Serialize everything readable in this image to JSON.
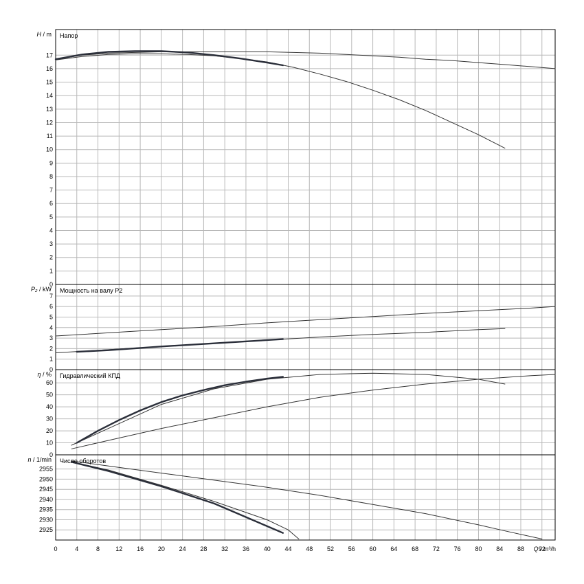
{
  "chart_data": [
    {
      "type": "line",
      "id": "head",
      "title": "Напор",
      "ylabel_symbol": "H",
      "ylabel_unit": "m",
      "ylim": [
        0,
        18.9
      ],
      "yticks": [
        0,
        1,
        2,
        3,
        4,
        5,
        6,
        7,
        8,
        9,
        10,
        11,
        12,
        13,
        14,
        15,
        16,
        17
      ],
      "grid": true,
      "series": [
        {
          "style": "thin",
          "x": [
            0,
            5,
            10,
            15,
            20,
            25,
            30,
            35,
            40,
            45,
            50,
            55,
            60,
            65,
            70,
            75,
            80,
            85,
            90,
            94.5
          ],
          "y": [
            16.7,
            17.0,
            17.15,
            17.2,
            17.25,
            17.25,
            17.25,
            17.25,
            17.25,
            17.2,
            17.15,
            17.05,
            16.95,
            16.85,
            16.7,
            16.6,
            16.45,
            16.3,
            16.15,
            16.0
          ]
        },
        {
          "style": "thin",
          "x": [
            0,
            5,
            10,
            15,
            20,
            25,
            30,
            35,
            40,
            45,
            50,
            55,
            60,
            65,
            70,
            75,
            80,
            85
          ],
          "y": [
            16.65,
            16.9,
            17.05,
            17.1,
            17.1,
            17.05,
            16.95,
            16.75,
            16.5,
            16.1,
            15.6,
            15.05,
            14.4,
            13.7,
            12.9,
            12.0,
            11.1,
            10.1
          ]
        },
        {
          "style": "bold",
          "x": [
            0,
            5,
            10,
            15,
            20,
            25,
            30,
            35,
            40,
            43
          ],
          "y": [
            16.7,
            17.05,
            17.25,
            17.3,
            17.3,
            17.2,
            17.0,
            16.75,
            16.45,
            16.25
          ]
        }
      ]
    },
    {
      "type": "line",
      "id": "power",
      "title": "Мощность на валу P2",
      "ylabel_symbol": "P₂",
      "ylabel_unit": "kW",
      "ylim": [
        0,
        8.1
      ],
      "yticks": [
        0,
        1,
        2,
        3,
        4,
        5,
        6,
        7
      ],
      "grid": true,
      "series": [
        {
          "style": "thin",
          "x": [
            0,
            10,
            20,
            30,
            40,
            50,
            60,
            70,
            80,
            90,
            94.5
          ],
          "y": [
            3.2,
            3.5,
            3.8,
            4.1,
            4.45,
            4.75,
            5.05,
            5.35,
            5.6,
            5.85,
            6.0
          ]
        },
        {
          "style": "thin",
          "x": [
            0,
            10,
            20,
            30,
            40,
            50,
            60,
            70,
            80,
            85
          ],
          "y": [
            1.6,
            1.9,
            2.2,
            2.5,
            2.8,
            3.1,
            3.35,
            3.55,
            3.8,
            3.9
          ]
        },
        {
          "style": "bold",
          "x": [
            4,
            10,
            20,
            30,
            43
          ],
          "y": [
            1.7,
            1.85,
            2.2,
            2.5,
            2.9
          ]
        }
      ]
    },
    {
      "type": "line",
      "id": "efficiency",
      "title": "Гидравлический КПД",
      "ylabel_symbol": "η",
      "ylabel_unit": "%",
      "ylim": [
        0,
        71
      ],
      "yticks": [
        0,
        10,
        20,
        30,
        40,
        50,
        60
      ],
      "grid": true,
      "series": [
        {
          "style": "thin",
          "x": [
            3,
            10,
            20,
            30,
            40,
            50,
            60,
            70,
            80,
            90,
            94.5
          ],
          "y": [
            5,
            12,
            22,
            31,
            40,
            48,
            54,
            59,
            63,
            66,
            67
          ]
        },
        {
          "style": "thin",
          "x": [
            3,
            10,
            20,
            30,
            40,
            50,
            60,
            70,
            80,
            85
          ],
          "y": [
            8,
            22,
            42,
            55,
            63,
            67,
            68,
            67,
            63,
            59
          ]
        },
        {
          "style": "bold",
          "x": [
            4,
            8,
            12,
            16,
            20,
            24,
            28,
            32,
            36,
            40,
            43
          ],
          "y": [
            10,
            20,
            29,
            37,
            44,
            49.5,
            54,
            58,
            61,
            63.5,
            65
          ]
        }
      ]
    },
    {
      "type": "line",
      "id": "speed",
      "title": "Число оборотов",
      "ylabel_symbol": "n",
      "ylabel_unit": "1/min",
      "ylim": [
        2920,
        2962
      ],
      "yticks": [
        2925,
        2930,
        2935,
        2940,
        2945,
        2950,
        2955
      ],
      "grid": true,
      "series": [
        {
          "style": "thin",
          "x": [
            3,
            10,
            20,
            30,
            40,
            50,
            60,
            70,
            80,
            85,
            92
          ],
          "y": [
            2959,
            2956.5,
            2953,
            2949.5,
            2946,
            2942,
            2937.5,
            2933,
            2927.5,
            2924.5,
            2920.5
          ]
        },
        {
          "style": "thin",
          "x": [
            3,
            10,
            20,
            30,
            40,
            44,
            46
          ],
          "y": [
            2958.5,
            2954.5,
            2947,
            2939,
            2930,
            2925,
            2920.5
          ]
        },
        {
          "style": "bold",
          "x": [
            3,
            10,
            20,
            30,
            43
          ],
          "y": [
            2958.5,
            2954,
            2946.5,
            2938,
            2923.5
          ]
        }
      ]
    }
  ],
  "x_axis": {
    "label_symbol": "Q",
    "label_unit": "m³/h",
    "xlim": [
      0,
      94.5
    ],
    "ticks": [
      0,
      4,
      8,
      12,
      16,
      20,
      24,
      28,
      32,
      36,
      40,
      44,
      48,
      52,
      56,
      60,
      64,
      68,
      72,
      76,
      80,
      84,
      88,
      92
    ]
  }
}
